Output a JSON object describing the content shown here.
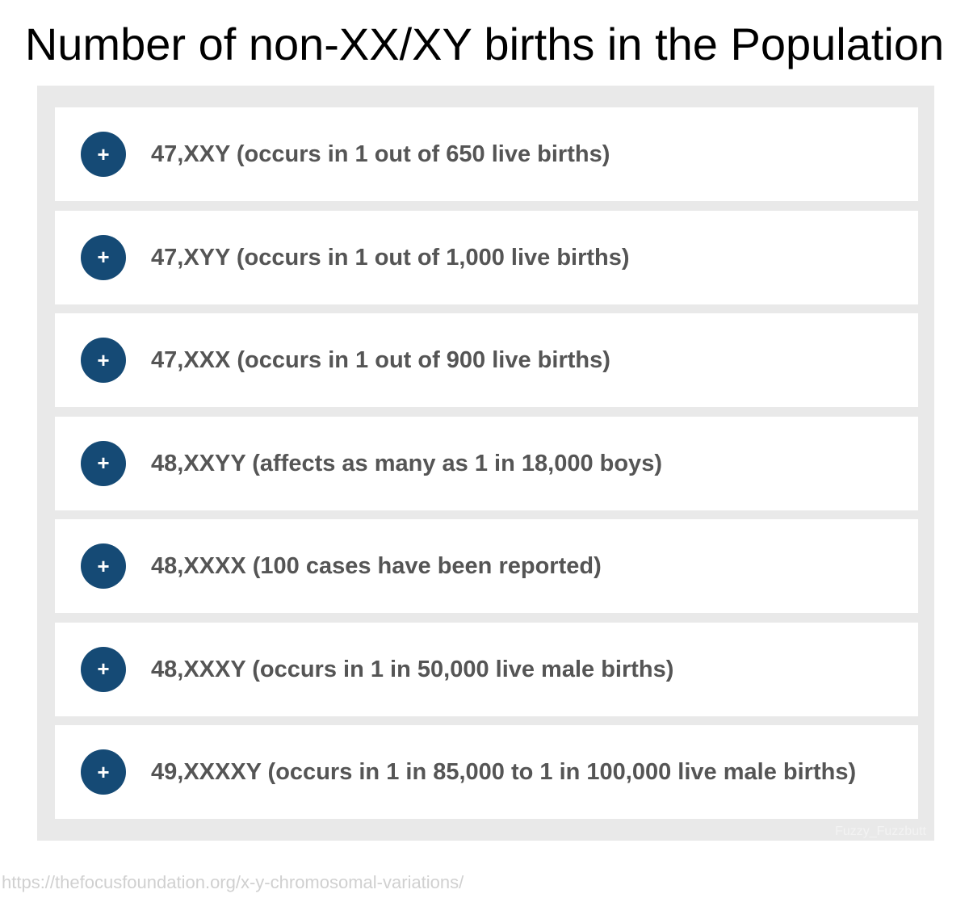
{
  "header": {
    "title": "Number of non-XX/XY births in the Population"
  },
  "items": [
    {
      "icon": "+",
      "label": "47,XXY (occurs in 1 out of 650 live births)"
    },
    {
      "icon": "+",
      "label": "47,XYY (occurs in 1 out of 1,000 live births)"
    },
    {
      "icon": "+",
      "label": "47,XXX (occurs in 1 out of 900 live births)"
    },
    {
      "icon": "+",
      "label": "48,XXYY (affects as many as 1 in 18,000 boys)"
    },
    {
      "icon": "+",
      "label": "48,XXXX (100 cases have been reported)"
    },
    {
      "icon": "+",
      "label": "48,XXXY (occurs in 1 in 50,000 live male births)"
    },
    {
      "icon": "+",
      "label": "49,XXXXY (occurs in 1 in 85,000 to 1 in 100,000 live male births)"
    }
  ],
  "watermark": "Fuzzy_Fuzzbutt",
  "footer": {
    "source": "https://thefocusfoundation.org/x-y-chromosomal-variations/"
  }
}
